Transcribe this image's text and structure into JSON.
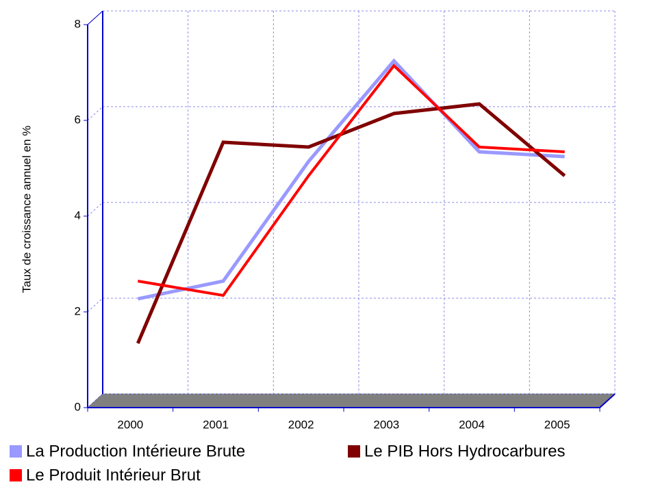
{
  "chart_data": {
    "type": "line",
    "y_label": "Taux de croissance annuel en %",
    "categories": [
      "2000",
      "2001",
      "2002",
      "2003",
      "2004",
      "2005"
    ],
    "series": [
      {
        "name": "La Production Intérieure Brute",
        "color": "#9999ff",
        "values": [
          2.13,
          2.5,
          5.0,
          7.1,
          5.2,
          5.1
        ]
      },
      {
        "name": "Le PIB Hors Hydrocarbures",
        "color": "#800000",
        "values": [
          1.2,
          5.4,
          5.3,
          6.0,
          6.2,
          4.7
        ]
      },
      {
        "name": "Le Produit  Intérieur Brut",
        "color": "#ff0000",
        "values": [
          2.5,
          2.2,
          4.7,
          7.0,
          5.3,
          5.2
        ]
      }
    ],
    "ylim": [
      0,
      8
    ],
    "yticks": [
      0,
      2,
      4,
      6,
      8
    ],
    "grid": true
  }
}
